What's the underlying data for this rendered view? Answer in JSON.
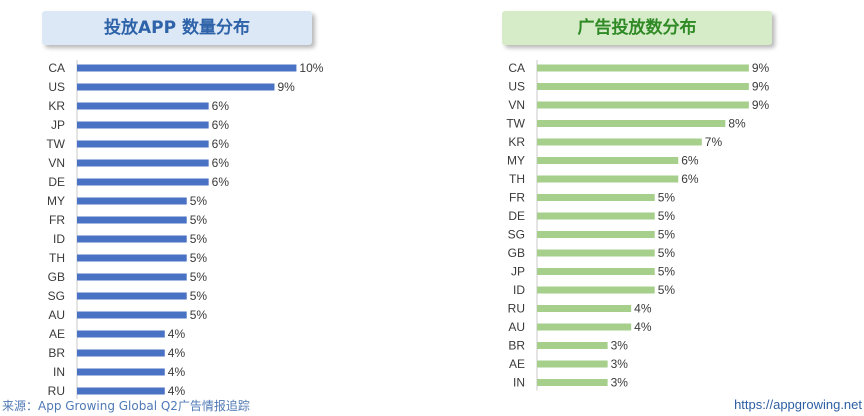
{
  "chart_data": [
    {
      "type": "bar",
      "orientation": "horizontal",
      "title": "投放APP 数量分布",
      "categories": [
        "CA",
        "US",
        "KR",
        "JP",
        "TW",
        "VN",
        "DE",
        "MY",
        "FR",
        "ID",
        "TH",
        "GB",
        "SG",
        "AU",
        "AE",
        "BR",
        "IN",
        "RU"
      ],
      "values": [
        10,
        9,
        6,
        6,
        6,
        6,
        6,
        5,
        5,
        5,
        5,
        5,
        5,
        5,
        4,
        4,
        4,
        4
      ],
      "value_labels": [
        "10%",
        "9%",
        "6%",
        "6%",
        "6%",
        "6%",
        "6%",
        "5%",
        "5%",
        "5%",
        "5%",
        "5%",
        "5%",
        "5%",
        "4%",
        "4%",
        "4%",
        "4%"
      ],
      "unit": "%",
      "bar_color": "#4a72c4",
      "xlim": [
        0,
        10.3
      ],
      "grid": false
    },
    {
      "type": "bar",
      "orientation": "horizontal",
      "title": "广告投放数分布",
      "categories": [
        "CA",
        "US",
        "VN",
        "TW",
        "KR",
        "MY",
        "TH",
        "FR",
        "DE",
        "SG",
        "GB",
        "JP",
        "ID",
        "RU",
        "AU",
        "BR",
        "AE",
        "IN"
      ],
      "values": [
        9,
        9,
        9,
        8,
        7,
        6,
        6,
        5,
        5,
        5,
        5,
        5,
        5,
        4,
        4,
        3,
        3,
        3
      ],
      "value_labels": [
        "9%",
        "9%",
        "9%",
        "8%",
        "7%",
        "6%",
        "6%",
        "5%",
        "5%",
        "5%",
        "5%",
        "5%",
        "5%",
        "4%",
        "4%",
        "3%",
        "3%",
        "3%"
      ],
      "unit": "%",
      "bar_color": "#a6cf8c",
      "xlim": [
        0,
        9.6
      ],
      "grid": false
    }
  ],
  "footer": {
    "source": "来源：App Growing Global Q2广告情报追踪",
    "website": "https://appgrowing.net"
  }
}
